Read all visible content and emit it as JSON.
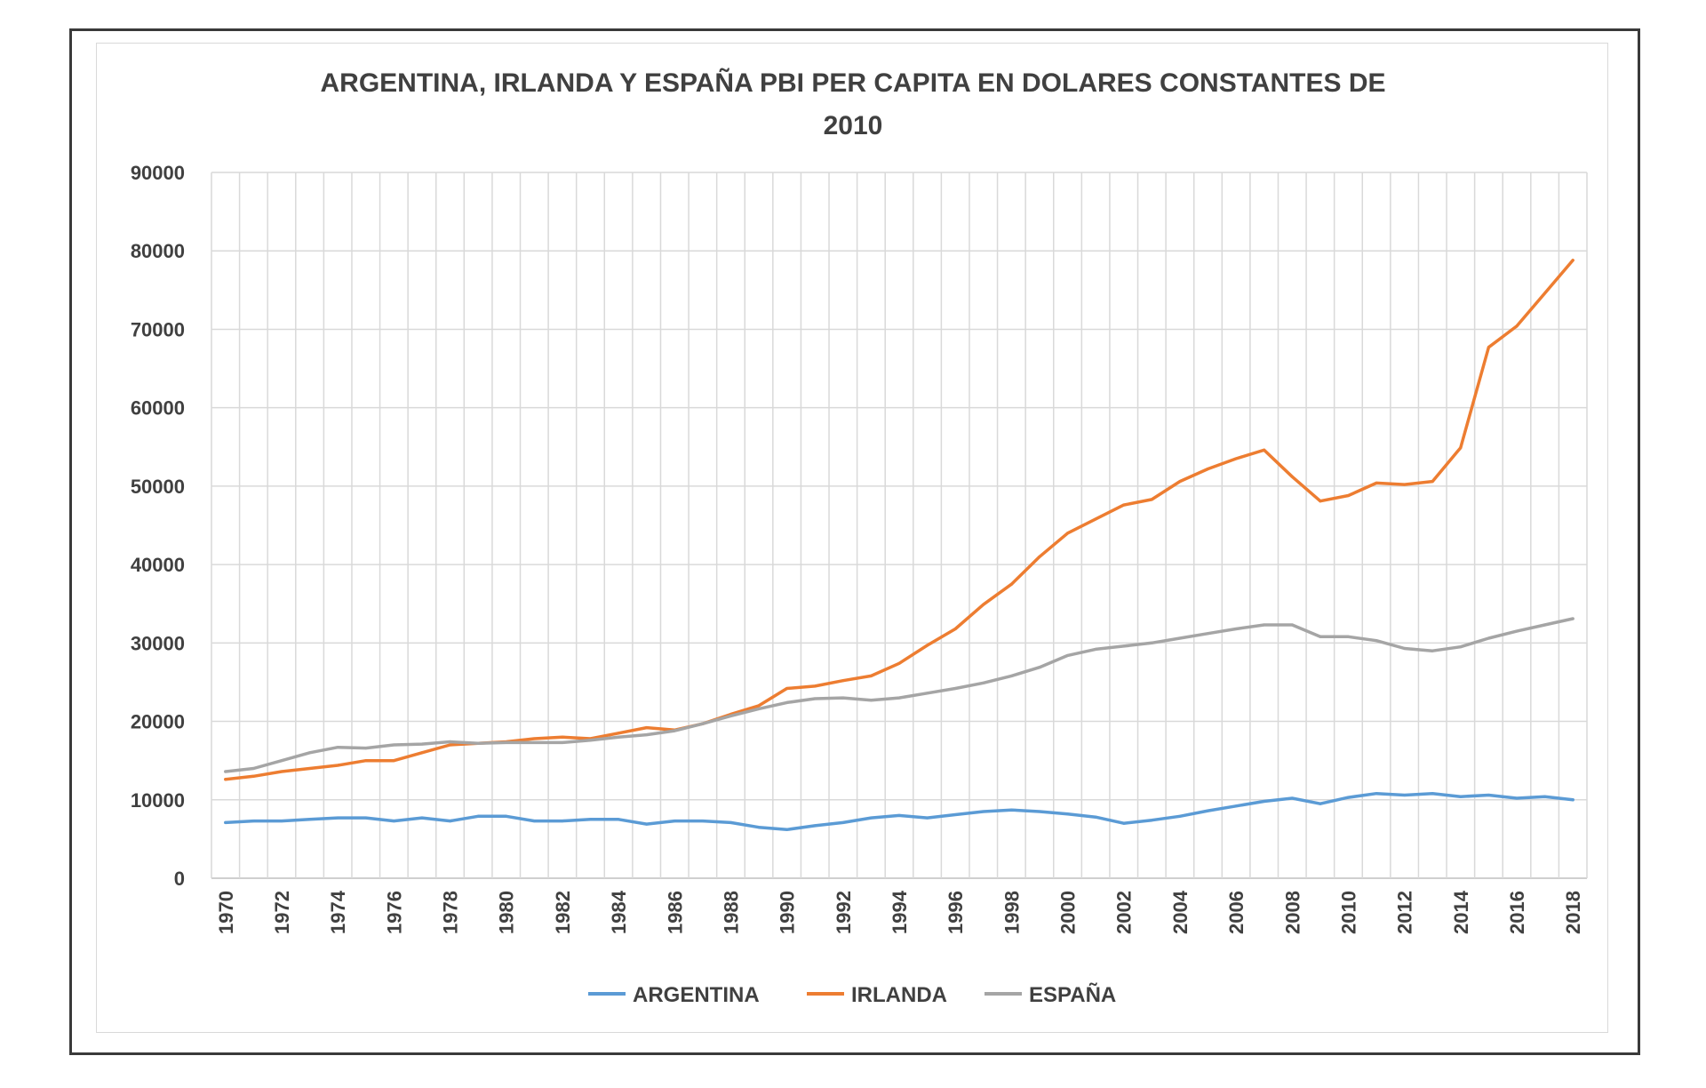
{
  "chart_data": {
    "type": "line",
    "title": "ARGENTINA, IRLANDA Y ESPAÑA PBI PER CAPITA EN DOLARES CONSTANTES DE 2010",
    "title_line1": "ARGENTINA, IRLANDA Y ESPAÑA PBI PER CAPITA EN DOLARES CONSTANTES DE",
    "title_line2": "2010",
    "xlabel": "",
    "ylabel": "",
    "ylim": [
      0,
      90000
    ],
    "yticks": [
      "0",
      "10000",
      "20000",
      "30000",
      "40000",
      "50000",
      "60000",
      "70000",
      "80000",
      "90000"
    ],
    "x": [
      1970,
      1971,
      1972,
      1973,
      1974,
      1975,
      1976,
      1977,
      1978,
      1979,
      1980,
      1981,
      1982,
      1983,
      1984,
      1985,
      1986,
      1987,
      1988,
      1989,
      1990,
      1991,
      1992,
      1993,
      1994,
      1995,
      1996,
      1997,
      1998,
      1999,
      2000,
      2001,
      2002,
      2003,
      2004,
      2005,
      2006,
      2007,
      2008,
      2009,
      2010,
      2011,
      2012,
      2013,
      2014,
      2015,
      2016,
      2017,
      2018
    ],
    "xtick_labels": [
      "1970",
      "1972",
      "1974",
      "1976",
      "1978",
      "1980",
      "1982",
      "1984",
      "1986",
      "1988",
      "1990",
      "1992",
      "1994",
      "1996",
      "1998",
      "2000",
      "2002",
      "2004",
      "2006",
      "2008",
      "2010",
      "2012",
      "2014",
      "2016",
      "2018"
    ],
    "grid": true,
    "legend_position": "bottom",
    "series": [
      {
        "name": "ARGENTINA",
        "color": "#5B9BD5",
        "values": [
          7100,
          7300,
          7300,
          7500,
          7700,
          7700,
          7300,
          7700,
          7300,
          7900,
          7900,
          7300,
          7300,
          7500,
          7500,
          6900,
          7300,
          7300,
          7100,
          6500,
          6200,
          6700,
          7100,
          7700,
          8000,
          7700,
          8100,
          8500,
          8700,
          8500,
          8200,
          7800,
          7000,
          7400,
          7900,
          8600,
          9200,
          9800,
          10200,
          9500,
          10300,
          10800,
          10600,
          10800,
          10400,
          10600,
          10200,
          10400,
          10000
        ]
      },
      {
        "name": "IRLANDA",
        "color": "#ED7D31",
        "values": [
          12600,
          13000,
          13600,
          14000,
          14400,
          15000,
          15000,
          16000,
          17000,
          17200,
          17400,
          17800,
          18000,
          17800,
          18500,
          19200,
          18900,
          19700,
          20900,
          22000,
          24200,
          24500,
          25200,
          25800,
          27400,
          29700,
          31800,
          34900,
          37500,
          41000,
          44000,
          45800,
          47600,
          48300,
          50600,
          52200,
          53500,
          54600,
          51200,
          48100,
          48800,
          50400,
          50200,
          50600,
          54900,
          67700,
          70400,
          74600,
          78800
        ]
      },
      {
        "name": "ESPAÑA",
        "color": "#A5A5A5",
        "values": [
          13600,
          14000,
          15000,
          16000,
          16700,
          16600,
          17000,
          17100,
          17400,
          17200,
          17300,
          17300,
          17300,
          17600,
          18000,
          18300,
          18800,
          19700,
          20700,
          21600,
          22400,
          22900,
          23000,
          22700,
          23000,
          23600,
          24200,
          24900,
          25800,
          26900,
          28400,
          29200,
          29600,
          30000,
          30600,
          31200,
          31800,
          32300,
          32300,
          30800,
          30800,
          30300,
          29300,
          29000,
          29500,
          30600,
          31500,
          32300,
          33100
        ]
      }
    ]
  }
}
